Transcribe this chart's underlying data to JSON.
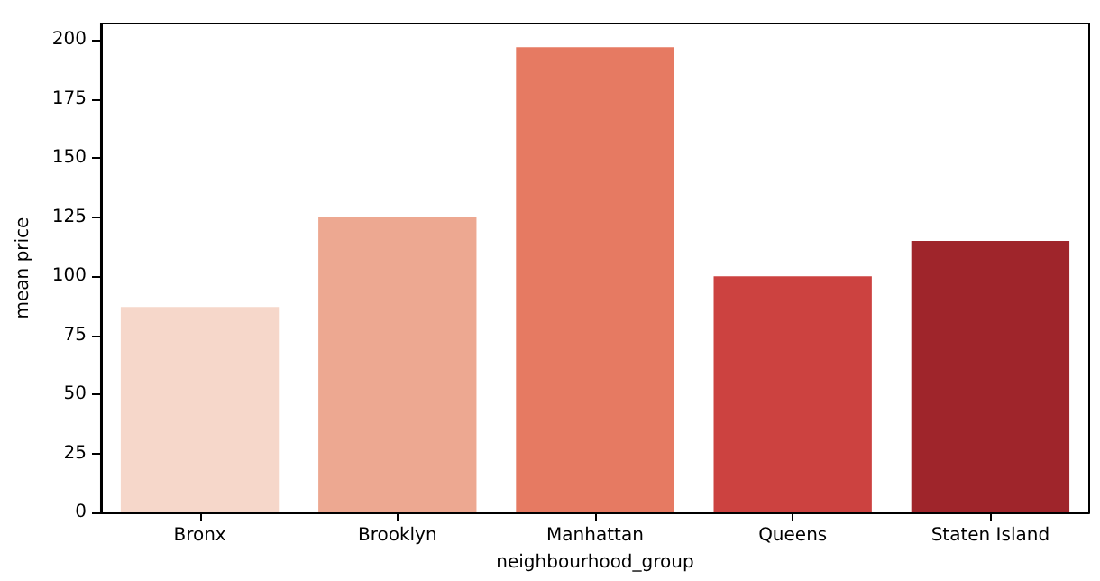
{
  "chart_data": {
    "type": "bar",
    "xlabel": "neighbourhood_group",
    "ylabel": "mean price",
    "categories": [
      "Bronx",
      "Brooklyn",
      "Manhattan",
      "Queens",
      "Staten Island"
    ],
    "values": [
      87,
      125,
      197,
      100,
      115
    ],
    "colors": [
      "#f6d7ca",
      "#eda891",
      "#e67a62",
      "#cc4240",
      "#9f252b"
    ],
    "ylim": [
      0,
      207
    ],
    "yticks": [
      0,
      25,
      50,
      75,
      100,
      125,
      150,
      175,
      200
    ],
    "grid": false
  }
}
